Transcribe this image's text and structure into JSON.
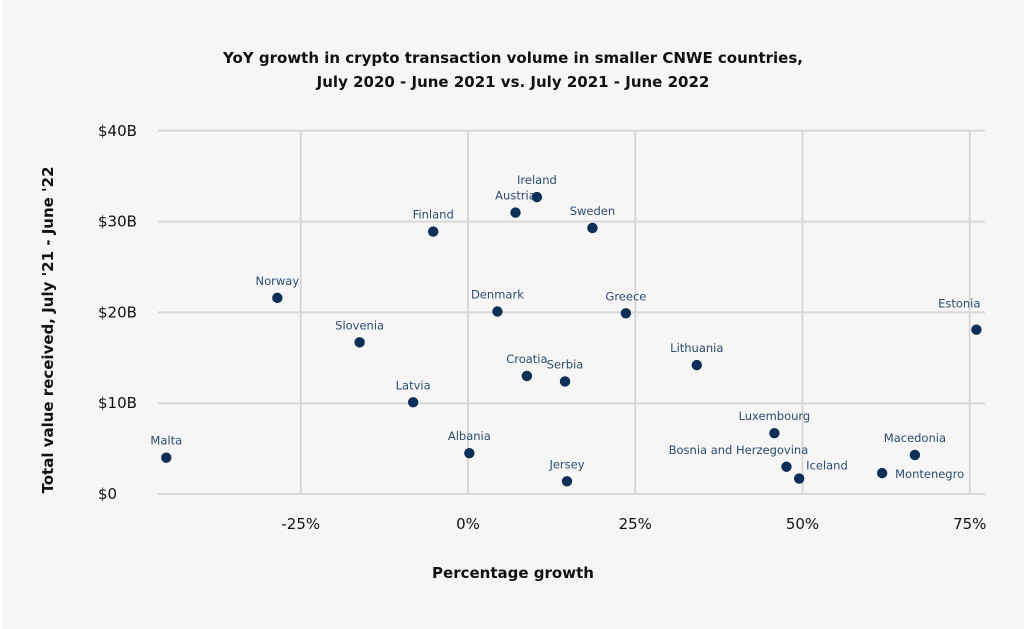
{
  "chart_data": {
    "type": "scatter",
    "title": [
      "YoY growth in crypto transaction volume in smaller CNWE countries,",
      "July 2020 - June 2021 vs. July 2021 - June 2022"
    ],
    "xlabel": "Percentage growth",
    "ylabel": "Total value received, July '21 - June '22",
    "xlim": [
      -47,
      77
    ],
    "ylim": [
      0,
      40
    ],
    "x_ticks": [
      {
        "value": -25,
        "label": "-25%"
      },
      {
        "value": 0,
        "label": "0%"
      },
      {
        "value": 25,
        "label": "25%"
      },
      {
        "value": 50,
        "label": "50%"
      },
      {
        "value": 75,
        "label": "75%"
      }
    ],
    "y_ticks": [
      {
        "value": 0,
        "label": "$0"
      },
      {
        "value": 10,
        "label": "$10B"
      },
      {
        "value": 20,
        "label": "$20B"
      },
      {
        "value": 30,
        "label": "$30B"
      },
      {
        "value": 40,
        "label": "$40B"
      }
    ],
    "grid": true,
    "x_unit": "percent",
    "y_unit": "billion USD",
    "points": [
      {
        "name": "Malta",
        "x": -45.1,
        "y": 4.0,
        "label_pos": "top"
      },
      {
        "name": "Norway",
        "x": -28.5,
        "y": 21.6,
        "label_pos": "top"
      },
      {
        "name": "Slovenia",
        "x": -16.2,
        "y": 16.7,
        "label_pos": "top"
      },
      {
        "name": "Latvia",
        "x": -8.2,
        "y": 10.1,
        "label_pos": "top"
      },
      {
        "name": "Finland",
        "x": -5.2,
        "y": 28.9,
        "label_pos": "top"
      },
      {
        "name": "Albania",
        "x": 0.2,
        "y": 4.5,
        "label_pos": "top"
      },
      {
        "name": "Denmark",
        "x": 4.4,
        "y": 20.1,
        "label_pos": "top"
      },
      {
        "name": "Austria",
        "x": 7.1,
        "y": 31.0,
        "label_pos": "top"
      },
      {
        "name": "Croatia",
        "x": 8.8,
        "y": 13.0,
        "label_pos": "top"
      },
      {
        "name": "Ireland",
        "x": 10.3,
        "y": 32.7,
        "label_pos": "top"
      },
      {
        "name": "Serbia",
        "x": 14.5,
        "y": 12.4,
        "label_pos": "top"
      },
      {
        "name": "Jersey",
        "x": 14.8,
        "y": 1.4,
        "label_pos": "top"
      },
      {
        "name": "Sweden",
        "x": 18.6,
        "y": 29.3,
        "label_pos": "top"
      },
      {
        "name": "Greece",
        "x": 23.6,
        "y": 19.9,
        "label_pos": "top"
      },
      {
        "name": "Lithuania",
        "x": 34.2,
        "y": 14.2,
        "label_pos": "top"
      },
      {
        "name": "Luxembourg",
        "x": 45.8,
        "y": 6.7,
        "label_pos": "top"
      },
      {
        "name": "Bosnia and Herzegovina",
        "x": 47.6,
        "y": 3.0,
        "label_pos": "top-left"
      },
      {
        "name": "Iceland",
        "x": 49.5,
        "y": 1.7,
        "label_pos": "top-right"
      },
      {
        "name": "Montenegro",
        "x": 61.9,
        "y": 2.3,
        "label_pos": "right"
      },
      {
        "name": "Macedonia",
        "x": 66.8,
        "y": 4.3,
        "label_pos": "top"
      },
      {
        "name": "Estonia",
        "x": 76.0,
        "y": 18.1,
        "label_pos": "top-left"
      }
    ],
    "colors": {
      "point": "#0b2f57",
      "point_label": "#2d4b70",
      "grid": "#d8d8d8",
      "background": "#f6f6f6"
    }
  }
}
